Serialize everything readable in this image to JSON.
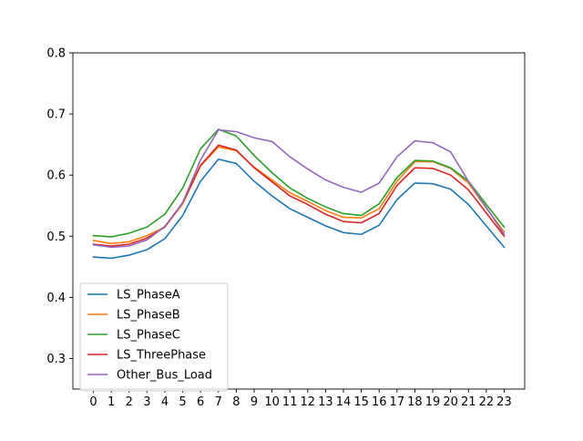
{
  "chart_data": {
    "type": "line",
    "title": "",
    "xlabel": "",
    "ylabel": "",
    "x": [
      0,
      1,
      2,
      3,
      4,
      5,
      6,
      7,
      8,
      9,
      10,
      11,
      12,
      13,
      14,
      15,
      16,
      17,
      18,
      19,
      20,
      21,
      22,
      23
    ],
    "xticks": [
      "0",
      "1",
      "2",
      "3",
      "4",
      "5",
      "6",
      "7",
      "8",
      "9",
      "10",
      "11",
      "12",
      "13",
      "14",
      "15",
      "16",
      "17",
      "18",
      "19",
      "20",
      "21",
      "22",
      "23"
    ],
    "xlim": [
      -1.15,
      24.15
    ],
    "ylim": [
      0.25,
      0.8
    ],
    "yticks": [
      "0.3",
      "0.4",
      "0.5",
      "0.6",
      "0.7",
      "0.8"
    ],
    "grid": false,
    "legend_position": "lower-left",
    "series": [
      {
        "name": "LS_PhaseA",
        "color": "#1f77b4",
        "values": [
          0.466,
          0.464,
          0.469,
          0.478,
          0.496,
          0.534,
          0.59,
          0.626,
          0.619,
          0.59,
          0.566,
          0.545,
          0.531,
          0.517,
          0.506,
          0.503,
          0.518,
          0.56,
          0.587,
          0.586,
          0.577,
          0.552,
          0.517,
          0.482
        ]
      },
      {
        "name": "LS_PhaseB",
        "color": "#ff7f0e",
        "values": [
          0.493,
          0.488,
          0.491,
          0.501,
          0.515,
          0.553,
          0.615,
          0.646,
          0.64,
          0.613,
          0.592,
          0.571,
          0.557,
          0.542,
          0.531,
          0.53,
          0.545,
          0.59,
          0.622,
          0.622,
          0.611,
          0.587,
          0.546,
          0.507
        ]
      },
      {
        "name": "LS_PhaseC",
        "color": "#2ca02c",
        "values": [
          0.501,
          0.499,
          0.505,
          0.515,
          0.536,
          0.579,
          0.643,
          0.675,
          0.664,
          0.632,
          0.604,
          0.579,
          0.562,
          0.548,
          0.537,
          0.534,
          0.553,
          0.596,
          0.624,
          0.623,
          0.612,
          0.59,
          0.552,
          0.515
        ]
      },
      {
        "name": "LS_ThreePhase",
        "color": "#d62728",
        "values": [
          0.487,
          0.484,
          0.487,
          0.497,
          0.515,
          0.555,
          0.616,
          0.649,
          0.641,
          0.612,
          0.589,
          0.566,
          0.552,
          0.536,
          0.524,
          0.522,
          0.537,
          0.583,
          0.612,
          0.611,
          0.6,
          0.576,
          0.538,
          0.5
        ]
      },
      {
        "name": "Other_Bus_Load",
        "color": "#9467bd",
        "values": [
          0.486,
          0.482,
          0.484,
          0.494,
          0.516,
          0.555,
          0.625,
          0.674,
          0.671,
          0.661,
          0.655,
          0.63,
          0.61,
          0.592,
          0.58,
          0.572,
          0.587,
          0.63,
          0.656,
          0.653,
          0.638,
          0.59,
          0.547,
          0.503
        ]
      }
    ]
  }
}
